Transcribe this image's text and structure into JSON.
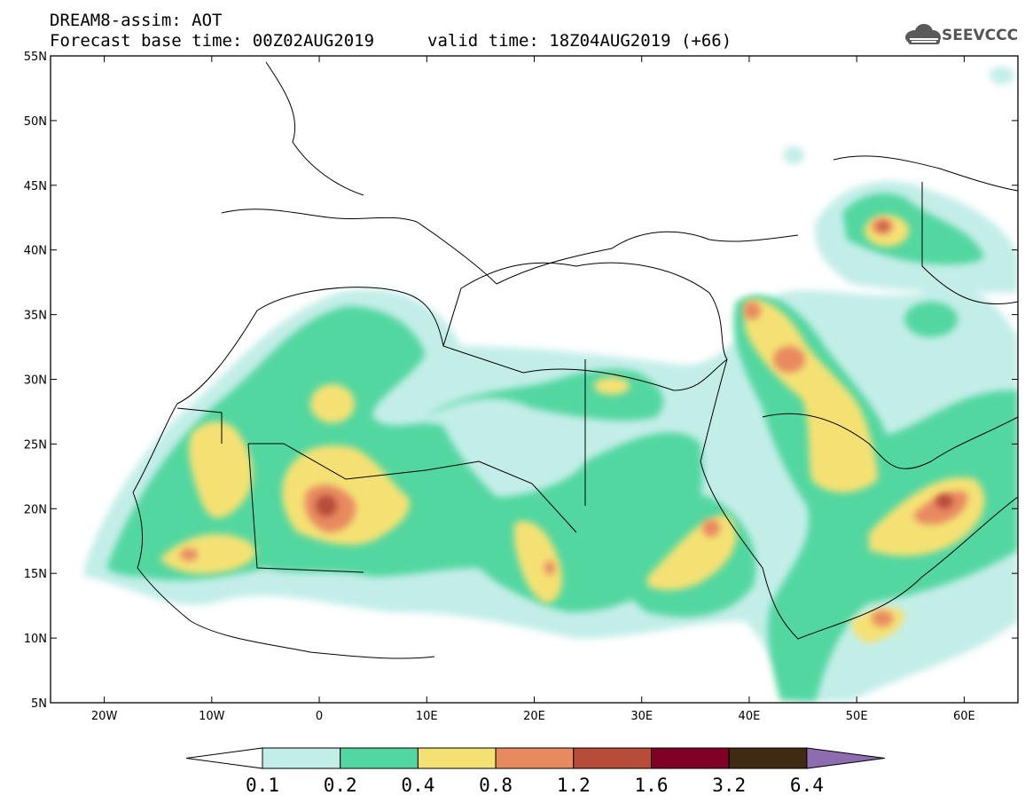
{
  "header": {
    "title": "DREAM8-assim: AOT",
    "base_time": "Forecast base time: 00Z02AUG2019",
    "valid_time": "valid time: 18Z04AUG2019 (+66)"
  },
  "logo": {
    "text": "SEEVCCC",
    "icon": "cloud-icon"
  },
  "map": {
    "x_ticks": [
      "20W",
      "10W",
      "0",
      "10E",
      "20E",
      "30E",
      "40E",
      "50E",
      "60E"
    ],
    "y_ticks": [
      "55N",
      "50N",
      "45N",
      "40N",
      "35N",
      "30N",
      "25N",
      "20N",
      "15N",
      "10N",
      "5N"
    ],
    "lon_range": [
      -25,
      65
    ],
    "lat_range": [
      5,
      55
    ]
  },
  "colorbar": {
    "labels": [
      "0.1",
      "0.2",
      "0.4",
      "0.8",
      "1.2",
      "1.6",
      "3.2",
      "6.4"
    ],
    "colors": [
      "#ffffff",
      "#c3eee8",
      "#52d7a0",
      "#f5e173",
      "#e88a60",
      "#b84c3a",
      "#800026",
      "#3f2a14",
      "#8e6cb0"
    ]
  }
}
